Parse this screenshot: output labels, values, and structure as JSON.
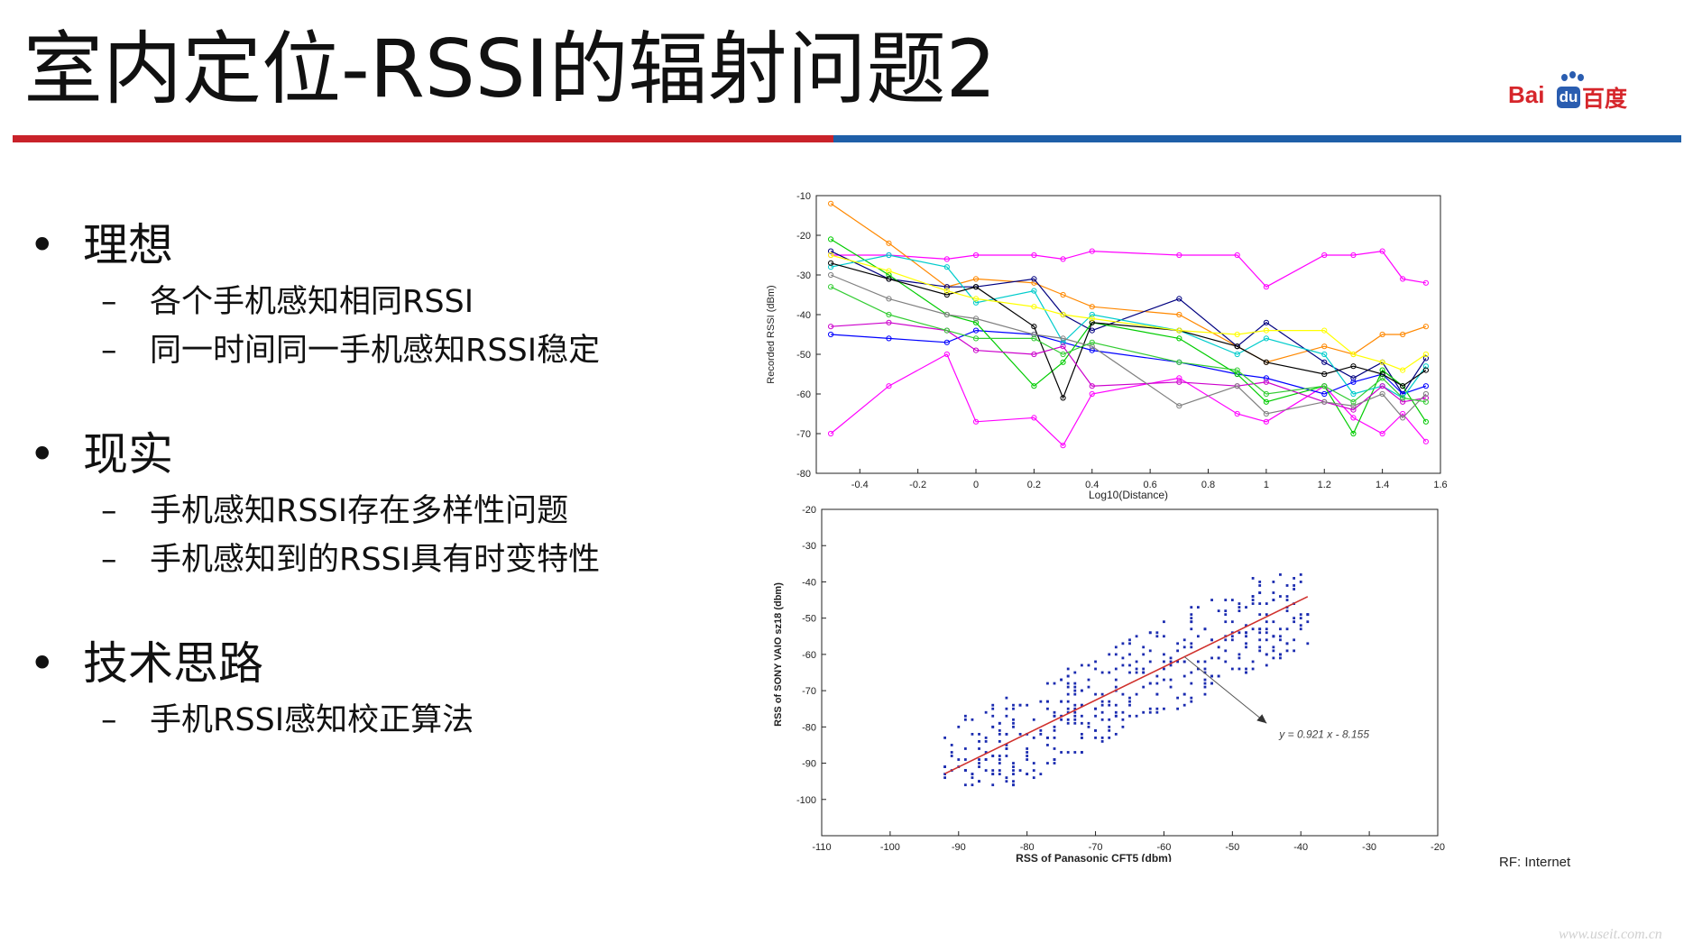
{
  "slide": {
    "title": "室内定位-RSSI的辐射问题2",
    "logo": {
      "latin": "Bai",
      "badge": "du",
      "chinese": "百度",
      "icon": "paw-icon"
    },
    "colors": {
      "accent_red": "#c9222a",
      "accent_blue": "#1f5fa8"
    },
    "bullets": [
      {
        "label": "理想",
        "sub": [
          "各个手机感知相同RSSI",
          "同一时间同一手机感知RSSI稳定"
        ]
      },
      {
        "label": "现实",
        "sub": [
          "手机感知RSSI存在多样性问题",
          "手机感知到的RSSI具有时变特性"
        ]
      },
      {
        "label": "技术思路",
        "sub": [
          "手机RSSI感知校正算法"
        ]
      }
    ],
    "bullet_symbol": "•",
    "dash_symbol": "–",
    "footnote": "RF: Internet",
    "watermark": "www.useit.com.cn"
  },
  "chart_data": [
    {
      "type": "line",
      "xlabel": "Log10(Distance)",
      "ylabel": "Recorded RSSI (dBm)",
      "xlim": [
        -0.55,
        1.6
      ],
      "ylim": [
        -80,
        -10
      ],
      "xticks": [
        "-0.4",
        "-0.2",
        "0",
        "0.2",
        "0.4",
        "0.6",
        "0.8",
        "1",
        "1.2",
        "1.4",
        "1.6"
      ],
      "yticks": [
        "-10",
        "-20",
        "-30",
        "-40",
        "-50",
        "-60",
        "-70",
        "-80"
      ],
      "grid": false,
      "x": [
        -0.5,
        -0.3,
        -0.1,
        0,
        0.2,
        0.3,
        0.4,
        0.7,
        0.9,
        1,
        1.2,
        1.3,
        1.4,
        1.47,
        1.55
      ],
      "series": [
        {
          "color": "#ff00ff",
          "values": [
            -25,
            -25,
            -26,
            -25,
            -25,
            -26,
            -24,
            -25,
            -25,
            -33,
            -25,
            -25,
            -24,
            -31,
            -32
          ]
        },
        {
          "color": "#ff8800",
          "values": [
            -12,
            -22,
            -33,
            -31,
            -32,
            -35,
            -38,
            -40,
            -48,
            -52,
            -48,
            -50,
            -45,
            -45,
            -43
          ]
        },
        {
          "color": "#ff00ff",
          "values": [
            -70,
            -58,
            -50,
            -67,
            -66,
            -73,
            -60,
            -56,
            -65,
            -67,
            -58,
            -66,
            -70,
            -65,
            -72
          ]
        },
        {
          "color": "#000080",
          "values": [
            -24,
            -31,
            -33,
            -33,
            -31,
            -40,
            -44,
            -36,
            -48,
            -42,
            -52,
            -56,
            -52,
            -60,
            -51
          ]
        },
        {
          "color": "#0000ff",
          "values": [
            -45,
            -46,
            -47,
            -44,
            -45,
            -47,
            -49,
            -52,
            -55,
            -56,
            -60,
            -57,
            -55,
            -60,
            -58
          ]
        },
        {
          "color": "#00cc00",
          "values": [
            -21,
            -30,
            -40,
            -42,
            -58,
            -52,
            -42,
            -46,
            -55,
            -62,
            -58,
            -70,
            -54,
            -58,
            -67
          ]
        },
        {
          "color": "#00cccc",
          "values": [
            -28,
            -25,
            -28,
            -37,
            -34,
            -47,
            -40,
            -44,
            -50,
            -46,
            -50,
            -60,
            -58,
            -61,
            -53
          ]
        },
        {
          "color": "#000000",
          "values": [
            -27,
            -31,
            -35,
            -33,
            -43,
            -61,
            -42,
            -44,
            -48,
            -52,
            -55,
            -53,
            -55,
            -58,
            -54
          ]
        },
        {
          "color": "#cc00cc",
          "values": [
            -43,
            -42,
            -44,
            -49,
            -50,
            -48,
            -58,
            -57,
            -58,
            -57,
            -62,
            -64,
            -58,
            -62,
            -61
          ]
        },
        {
          "color": "#ffff00",
          "values": [
            -25,
            -29,
            -34,
            -36,
            -38,
            -40,
            -41,
            -44,
            -45,
            -44,
            -44,
            -50,
            -52,
            -54,
            -50
          ]
        },
        {
          "color": "#808080",
          "values": [
            -30,
            -36,
            -40,
            -41,
            -45,
            -46,
            -48,
            -63,
            -58,
            -65,
            -62,
            -63,
            -60,
            -66,
            -60
          ]
        },
        {
          "color": "#33cc33",
          "values": [
            -33,
            -40,
            -44,
            -46,
            -46,
            -50,
            -47,
            -52,
            -54,
            -60,
            -58,
            -62,
            -56,
            -61,
            -62
          ]
        }
      ]
    },
    {
      "type": "scatter",
      "xlabel": "RSS of Panasonic CFT5 (dbm)",
      "ylabel": "RSS of SONY VAIO sz18 (dbm)",
      "xlim": [
        -110,
        -20
      ],
      "ylim": [
        -110,
        -20
      ],
      "xticks": [
        "-110",
        "-100",
        "-90",
        "-80",
        "-70",
        "-60",
        "-50",
        "-40",
        "-30",
        "-20"
      ],
      "yticks": [
        "-20",
        "-30",
        "-40",
        "-50",
        "-60",
        "-70",
        "-80",
        "-90",
        "-100"
      ],
      "fit": {
        "slope": 0.921,
        "intercept": -8.155,
        "x_range": [
          -92,
          -39
        ],
        "label": "y = 0.921 x - 8.155"
      },
      "point_color": "#1a2bb0",
      "fit_color": "#d0312d"
    }
  ]
}
